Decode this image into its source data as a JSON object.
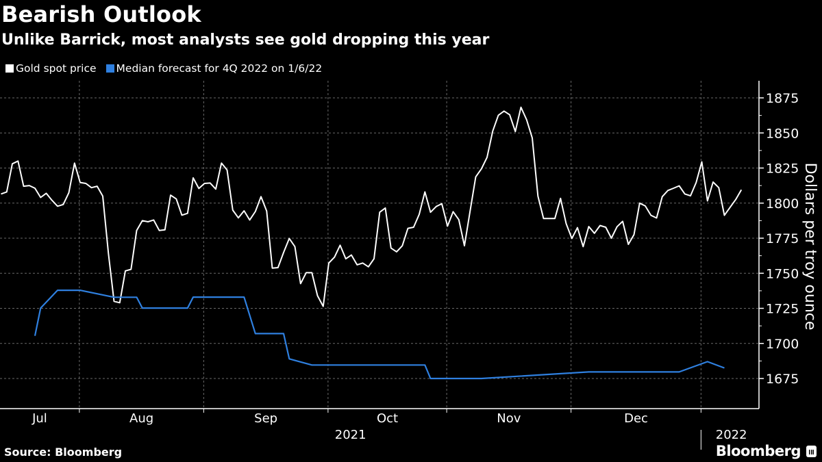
{
  "header": {
    "title": "Bearish Outlook",
    "subtitle": "Unlike Barrick, most analysts see gold dropping this year"
  },
  "legend": [
    {
      "label": "Gold spot price",
      "color": "#ffffff"
    },
    {
      "label": "Median forecast for 4Q 2022 on 1/6/22",
      "color": "#2f80e0"
    }
  ],
  "footer": {
    "source": "Source: Bloomberg",
    "logo": "Bloomberg",
    "logo_icon": "bloomberg-chart-icon"
  },
  "chart_data": {
    "type": "line",
    "title": "Bearish Outlook",
    "ylabel": "Dollars per troy ounce",
    "y_axis_side": "right",
    "ylim": [
      1662,
      1885
    ],
    "yticks": [
      1675,
      1700,
      1725,
      1750,
      1775,
      1800,
      1825,
      1850,
      1875
    ],
    "x_month_labels": [
      {
        "month": "2021-07",
        "label": "Jul"
      },
      {
        "month": "2021-08",
        "label": "Aug"
      },
      {
        "month": "2021-09",
        "label": "Sep"
      },
      {
        "month": "2021-10",
        "label": "Oct"
      },
      {
        "month": "2021-11",
        "label": "Nov"
      },
      {
        "month": "2021-12",
        "label": "Dec"
      }
    ],
    "x_year_labels": [
      "2021",
      "2022"
    ],
    "grid": true,
    "legend_position": "top-left",
    "dates": [
      "2021-07-13",
      "2021-07-14",
      "2021-07-15",
      "2021-07-16",
      "2021-07-19",
      "2021-07-20",
      "2021-07-21",
      "2021-07-22",
      "2021-07-23",
      "2021-07-26",
      "2021-07-27",
      "2021-07-28",
      "2021-07-29",
      "2021-07-30",
      "2021-08-02",
      "2021-08-03",
      "2021-08-04",
      "2021-08-05",
      "2021-08-06",
      "2021-08-09",
      "2021-08-10",
      "2021-08-11",
      "2021-08-12",
      "2021-08-13",
      "2021-08-16",
      "2021-08-17",
      "2021-08-18",
      "2021-08-19",
      "2021-08-20",
      "2021-08-23",
      "2021-08-24",
      "2021-08-25",
      "2021-08-26",
      "2021-08-27",
      "2021-08-30",
      "2021-08-31",
      "2021-09-01",
      "2021-09-02",
      "2021-09-03",
      "2021-09-06",
      "2021-09-07",
      "2021-09-08",
      "2021-09-09",
      "2021-09-10",
      "2021-09-13",
      "2021-09-14",
      "2021-09-15",
      "2021-09-16",
      "2021-09-17",
      "2021-09-20",
      "2021-09-21",
      "2021-09-22",
      "2021-09-23",
      "2021-09-24",
      "2021-09-27",
      "2021-09-28",
      "2021-09-29",
      "2021-09-30",
      "2021-10-01",
      "2021-10-04",
      "2021-10-05",
      "2021-10-06",
      "2021-10-07",
      "2021-10-08",
      "2021-10-11",
      "2021-10-12",
      "2021-10-13",
      "2021-10-14",
      "2021-10-15",
      "2021-10-18",
      "2021-10-19",
      "2021-10-20",
      "2021-10-21",
      "2021-10-22",
      "2021-10-25",
      "2021-10-26",
      "2021-10-27",
      "2021-10-28",
      "2021-10-29",
      "2021-11-01",
      "2021-11-02",
      "2021-11-03",
      "2021-11-04",
      "2021-11-05",
      "2021-11-08",
      "2021-11-09",
      "2021-11-10",
      "2021-11-11",
      "2021-11-12",
      "2021-11-15",
      "2021-11-16",
      "2021-11-17",
      "2021-11-18",
      "2021-11-19",
      "2021-11-22",
      "2021-11-23",
      "2021-11-24",
      "2021-11-25",
      "2021-11-26",
      "2021-11-29",
      "2021-11-30",
      "2021-12-01",
      "2021-12-02",
      "2021-12-03",
      "2021-12-06",
      "2021-12-07",
      "2021-12-08",
      "2021-12-09",
      "2021-12-10",
      "2021-12-13",
      "2021-12-14",
      "2021-12-15",
      "2021-12-16",
      "2021-12-17",
      "2021-12-20",
      "2021-12-21",
      "2021-12-22",
      "2021-12-23",
      "2021-12-24",
      "2021-12-27",
      "2021-12-28",
      "2021-12-29",
      "2021-12-30",
      "2021-12-31",
      "2022-01-03",
      "2022-01-04",
      "2022-01-05",
      "2022-01-06",
      "2022-01-07",
      "2022-01-10",
      "2022-01-11",
      "2022-01-12"
    ],
    "series": [
      {
        "name": "Gold spot price",
        "color": "#ffffff",
        "values": [
          1806.5,
          1808,
          1828,
          1830,
          1812,
          1812.5,
          1810.6,
          1804,
          1807,
          1802,
          1797.8,
          1799,
          1807.4,
          1828.5,
          1814.7,
          1814,
          1811,
          1812,
          1805,
          1764,
          1730,
          1729,
          1751.7,
          1752.8,
          1780.5,
          1787.5,
          1786.7,
          1788,
          1780.5,
          1781,
          1805.7,
          1803,
          1791.4,
          1792.7,
          1818,
          1810.4,
          1814,
          1814.3,
          1810,
          1828.5,
          1823.6,
          1795,
          1789.5,
          1794.5,
          1788,
          1794,
          1804.6,
          1794.3,
          1753.7,
          1754,
          1764.8,
          1774.8,
          1769,
          1742.6,
          1750.4,
          1750.4,
          1734,
          1726.4,
          1757.3,
          1761.5,
          1770,
          1760.3,
          1763,
          1756,
          1757.3,
          1754.6,
          1760.3,
          1793.5,
          1796.5,
          1768,
          1765.3,
          1769.6,
          1782,
          1782.8,
          1792,
          1808,
          1793.5,
          1797.6,
          1799.6,
          1783.6,
          1793.9,
          1788.2,
          1769.6,
          1794.4,
          1818.7,
          1824.4,
          1832.6,
          1851.3,
          1862.6,
          1865.6,
          1863,
          1851,
          1868.3,
          1859.4,
          1846.4,
          1805,
          1789,
          1789,
          1789,
          1803.4,
          1785.4,
          1774.8,
          1782.5,
          1769,
          1783.3,
          1778.5,
          1784,
          1782.8,
          1775,
          1783.2,
          1787,
          1770.6,
          1777.5,
          1800,
          1798,
          1791.3,
          1789.4,
          1804.6,
          1809,
          1810.6,
          1812.3,
          1806.5,
          1805.2,
          1814.7,
          1829.4,
          1801.6,
          1815,
          1811,
          1791.3,
          1797,
          1802.5,
          1809.5
        ]
      },
      {
        "name": "Median forecast for 4Q 2022 on 1/6/22",
        "color": "#2f80e0",
        "points": [
          [
            "2021-07-21",
            1705.4
          ],
          [
            "2021-07-22",
            1725.2
          ],
          [
            "2021-07-27",
            1737.9
          ],
          [
            "2021-08-02",
            1737.9
          ],
          [
            "2021-08-10",
            1732.9
          ],
          [
            "2021-08-16",
            1732.9
          ],
          [
            "2021-08-17",
            1725.2
          ],
          [
            "2021-08-27",
            1725.2
          ],
          [
            "2021-08-30",
            1733
          ],
          [
            "2021-09-10",
            1733
          ],
          [
            "2021-09-14",
            1707
          ],
          [
            "2021-09-21",
            1707
          ],
          [
            "2021-09-22",
            1689
          ],
          [
            "2021-09-28",
            1684.6
          ],
          [
            "2021-10-26",
            1684.6
          ],
          [
            "2021-10-27",
            1675
          ],
          [
            "2021-11-09",
            1675
          ],
          [
            "2021-12-06",
            1679.7
          ],
          [
            "2021-12-28",
            1679.7
          ],
          [
            "2022-01-04",
            1687
          ],
          [
            "2022-01-07",
            1682.5
          ]
        ]
      }
    ]
  }
}
